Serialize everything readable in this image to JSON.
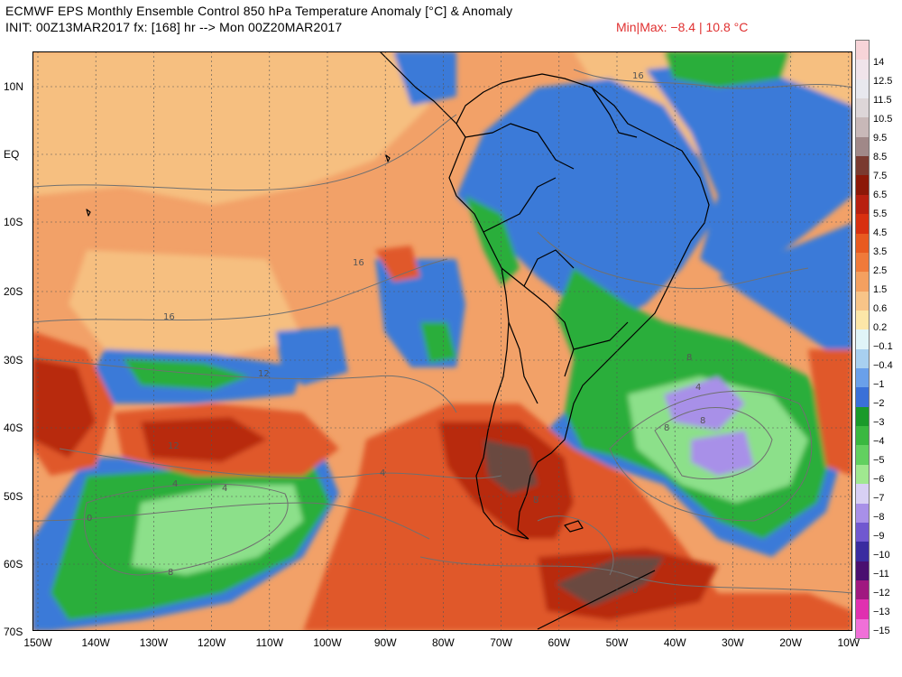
{
  "header": {
    "title": "ECMWF EPS Monthly Ensemble Control 850 hPa Temperature Anomaly [°C] & Anomaly",
    "init_line": "INIT: 00Z13MAR2017 fx: [168] hr --> Mon 00Z20MAR2017",
    "minmax": "Min|Max: −8.4 | 10.8 °C"
  },
  "map": {
    "lat_labels": [
      "10N",
      "EQ",
      "10S",
      "20S",
      "30S",
      "40S",
      "50S",
      "60S",
      "70S"
    ],
    "lon_labels": [
      "150W",
      "140W",
      "130W",
      "120W",
      "110W",
      "100W",
      "90W",
      "80W",
      "70W",
      "60W",
      "50W",
      "40W",
      "30W",
      "20W",
      "10W"
    ],
    "contour_labels": [
      "16",
      "16",
      "16",
      "12",
      "12",
      "8",
      "4",
      "8",
      "4",
      "8",
      "4",
      "0",
      "8",
      "8",
      "4",
      "0"
    ]
  },
  "colorbar": {
    "labels": [
      "14",
      "12.5",
      "11.5",
      "10.5",
      "9.5",
      "8.5",
      "7.5",
      "6.5",
      "5.5",
      "4.5",
      "3.5",
      "2.5",
      "1.5",
      "0.6",
      "0.2",
      "−0.1",
      "−0.4",
      "−1",
      "−2",
      "−3",
      "−4",
      "−5",
      "−6",
      "−7",
      "−8",
      "−9",
      "−10",
      "−11",
      "−12",
      "−13",
      "−15"
    ],
    "colors": [
      "#f7d4d8",
      "#f0e4ea",
      "#e8e8ee",
      "#ddd6d8",
      "#c8b8b8",
      "#a08888",
      "#7a3a30",
      "#8c1808",
      "#b82010",
      "#d83010",
      "#e85a20",
      "#f07a3a",
      "#f4a060",
      "#f8c488",
      "#fce6a8",
      "#e0f4f8",
      "#a8d0f0",
      "#6aa0ea",
      "#3a70d8",
      "#1a9a2a",
      "#3ab840",
      "#62d060",
      "#a0e890",
      "#d8d0f4",
      "#a890e8",
      "#7058d0",
      "#3a2ca0",
      "#4a1070",
      "#a01880",
      "#e030b0",
      "#f070d8"
    ]
  },
  "palette": {
    "ocean_base": "#f2a168",
    "dark_red": "#b82a10",
    "mid_red": "#e0582a",
    "light_orange": "#f6bf80",
    "blue": "#3a7ad8",
    "light_blue": "#a8d0f0",
    "green": "#2aae3a",
    "light_green": "#8ce08a",
    "purple": "#a890e8",
    "brown": "#6a4a40",
    "coast": "#000000",
    "contour": "#707070"
  }
}
